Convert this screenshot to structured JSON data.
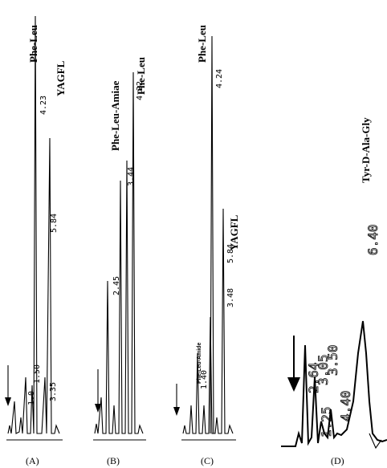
{
  "chart_data": [
    {
      "type": "line",
      "panel": "(A)",
      "peaks": [
        {
          "rt": "1.00",
          "height": 0.04
        },
        {
          "rt": "1.50",
          "height": 0.1
        },
        {
          "rt": "3.35",
          "height": 0.2
        },
        {
          "rt": "4.23",
          "height": 1.0,
          "label": "Phe-Leu"
        },
        {
          "rt": "5.84",
          "height": 0.8,
          "label": "YAGFL"
        }
      ]
    },
    {
      "type": "line",
      "panel": "(B)",
      "peaks": [
        {
          "rt": "2.45",
          "height": 0.45
        },
        {
          "rt": "3.44",
          "height": 0.72,
          "label": "Phe-Leu-Amiae"
        },
        {
          "rt": "4.22",
          "height": 0.96,
          "label": "Phe-Leu"
        }
      ]
    },
    {
      "type": "line",
      "panel": "(C)",
      "peaks": [
        {
          "rt": "1.40",
          "height": 0.1
        },
        {
          "rt": "3.48",
          "height": 0.12
        },
        {
          "rt": "4.24",
          "height": 1.0,
          "label": "Phe-Leu"
        },
        {
          "rt": "5.84",
          "height": 0.52,
          "label": "YAGFL"
        },
        {
          "rt": "",
          "height": 0.35,
          "label": "Phe-Leu-Amide"
        }
      ]
    },
    {
      "type": "line",
      "panel": "(D)",
      "peaks": [
        {
          "rt": "4.40",
          "height": 0.3
        },
        {
          "rt": "6.40",
          "height": 0.8,
          "label": "Tyr-D-Ala-Gly"
        }
      ]
    }
  ],
  "labels": {
    "a_philleu": "Phe-Leu",
    "a_yagfl": "YAGFL",
    "a_rt1": "4.23",
    "a_rt2": "5.84",
    "a_rt3": "1.50",
    "a_rt4": "3.35",
    "a_rt5": "1.0",
    "b_amide": "Phe-Leu-Amiae",
    "b_philleu": "Phe-Leu",
    "b_rt1": "4.22",
    "b_rt2": "3.44",
    "b_rt3": "2.45",
    "c_philleu": "Phe-Leu",
    "c_yagfl": "YAGFL",
    "c_amide": "Phe-Leu-Amide",
    "c_rt1": "4.24",
    "c_rt2": "5.84",
    "c_rt3": "3.48",
    "c_rt4": "1.40",
    "d_tyr": "Tyr-D-Ala-Gly",
    "d_rtbig": "6.40",
    "d_rt1": "4.40",
    "d_rt2": "3.50",
    "d_rt3": "3.05",
    "d_rt4": "2.64",
    "d_rt5": "1.25",
    "panel_a": "(A)",
    "panel_b": "(B)",
    "panel_c": "(C)",
    "panel_d": "(D)"
  }
}
